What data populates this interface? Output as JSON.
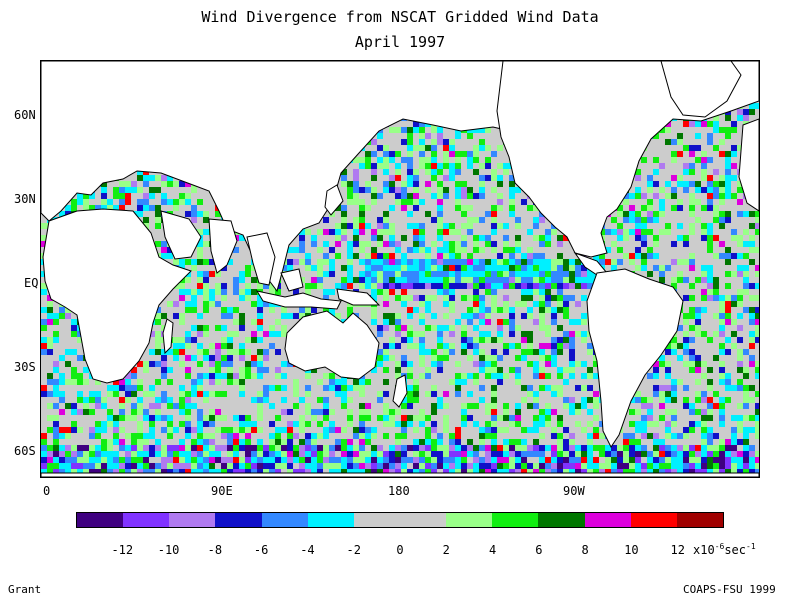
{
  "title": "Wind Divergence from NSCAT Gridded Wind Data",
  "subtitle": "April 1997",
  "lat_labels": [
    "60N",
    "30N",
    "EQ",
    "30S",
    "60S"
  ],
  "lon_labels": [
    "0",
    "90E",
    "180",
    "90W"
  ],
  "colorbar": {
    "colors": [
      "#3f0080",
      "#8033ff",
      "#b07af0",
      "#1010c8",
      "#3388ff",
      "#00f0ff",
      "#cccccc",
      "#cccccc",
      "#99ff88",
      "#11ee11",
      "#007700",
      "#dd00dd",
      "#ff0000",
      "#a00000"
    ],
    "ticks": [
      "-12",
      "-10",
      "-8",
      "-6",
      "-4",
      "-2",
      "0",
      "2",
      "4",
      "6",
      "8",
      "10",
      "12"
    ],
    "unit_prefix": "x10",
    "unit_exp": "-6",
    "unit_suffix": "sec",
    "unit_suffix_exp": "-1"
  },
  "footer_left": "Grant",
  "footer_right": "COAPS-FSU 1999"
}
